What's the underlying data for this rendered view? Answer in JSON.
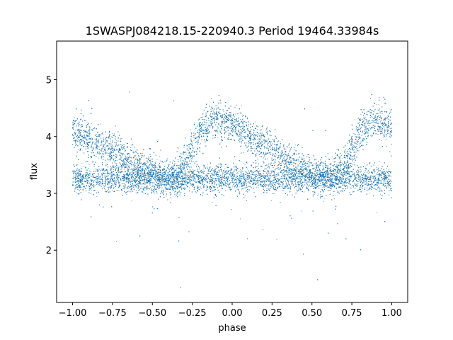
{
  "chart_data": {
    "type": "scatter",
    "title": "1SWASPJ084218.15-220940.3 Period 19464.33984s",
    "xlabel": "phase",
    "ylabel": "flux",
    "xlim": [
      -1.1,
      1.1
    ],
    "ylim": [
      1.08,
      5.68
    ],
    "x_ticks": [
      -1.0,
      -0.75,
      -0.5,
      -0.25,
      0.0,
      0.25,
      0.5,
      0.75,
      1.0
    ],
    "x_tick_labels": [
      "−1.00",
      "−0.75",
      "−0.50",
      "−0.25",
      "0.00",
      "0.25",
      "0.50",
      "0.75",
      "1.00"
    ],
    "y_ticks": [
      2,
      3,
      4,
      5
    ],
    "y_tick_labels": [
      "2",
      "3",
      "4",
      "5"
    ],
    "grid": false,
    "marker_color": "#1f77b4",
    "phase_range": [
      -1.0,
      1.0
    ],
    "series": [
      {
        "description": "Phase-folded light curve: baseline branch near flux 3.25 plus a second branch that peaks near 4.35 at phase -0.1 and 0.9 and decays to the baseline by about phase 0.6 / -0.4.",
        "baseline_flux": 3.25,
        "peak_flux": 4.35,
        "peak_phases": [
          -0.1,
          0.9
        ],
        "approx_points": 22000,
        "profile": {
          "phase": [
            -1.0,
            -0.9,
            -0.8,
            -0.7,
            -0.6,
            -0.5,
            -0.4,
            -0.3,
            -0.2,
            -0.1,
            0.0,
            0.1,
            0.2,
            0.3,
            0.4,
            0.5,
            0.6,
            0.7,
            0.8,
            0.9,
            1.0
          ],
          "upper_branch_flux": [
            4.1,
            3.95,
            3.8,
            3.65,
            3.5,
            3.35,
            3.3,
            3.45,
            4.1,
            4.35,
            4.2,
            4.0,
            3.85,
            3.7,
            3.5,
            3.35,
            3.3,
            3.45,
            4.1,
            4.35,
            4.15
          ],
          "lower_branch_flux": [
            3.25,
            3.25,
            3.25,
            3.25,
            3.25,
            3.25,
            3.2,
            3.25,
            3.25,
            3.25,
            3.25,
            3.25,
            3.25,
            3.25,
            3.25,
            3.25,
            3.2,
            3.25,
            3.25,
            3.25,
            3.25
          ]
        }
      }
    ]
  }
}
